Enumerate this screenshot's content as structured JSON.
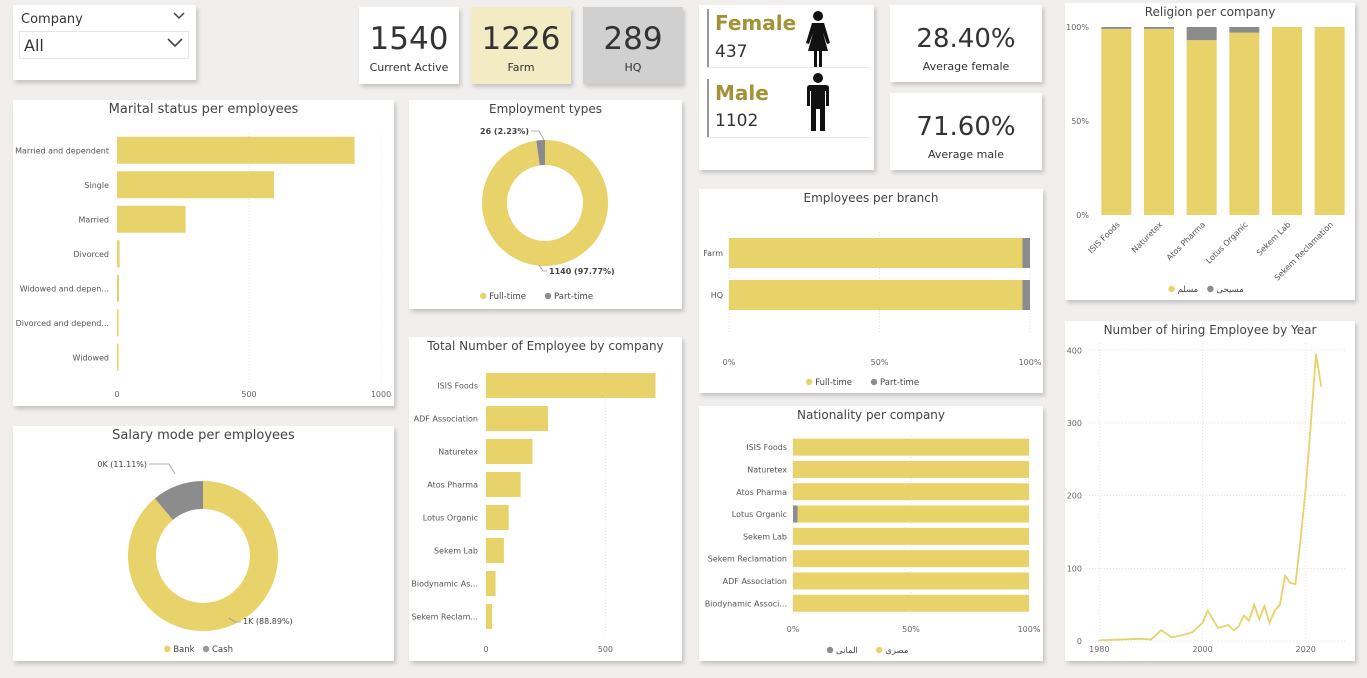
{
  "colors": {
    "yellow": "#e8d26a",
    "gray": "#8c8c8c",
    "gold_text": "#a39237"
  },
  "slicer": {
    "title": "Company",
    "value": "All"
  },
  "kpis": [
    {
      "value": "1540",
      "label": "Current Active"
    },
    {
      "value": "1226",
      "label": "Farm"
    },
    {
      "value": "289",
      "label": "HQ"
    }
  ],
  "gender": {
    "female_label": "Female",
    "female_count": "437",
    "male_label": "Male",
    "male_count": "1102"
  },
  "averages": {
    "female_pct": "28.40%",
    "female_label": "Average female",
    "male_pct": "71.60%",
    "male_label": "Average male"
  },
  "chart_data": [
    {
      "id": "marital",
      "type": "bar",
      "orientation": "horizontal",
      "title": "Marital status per employees",
      "categories": [
        "Married and dependent",
        "Single",
        "Married",
        "Divorced",
        "Widowed and depen...",
        "Divorced and depend...",
        "Widowed"
      ],
      "values": [
        900,
        595,
        260,
        10,
        8,
        5,
        3
      ],
      "xlim": [
        0,
        1000
      ],
      "xticks": [
        "0",
        "500",
        "1000"
      ],
      "grid": false
    },
    {
      "id": "employment",
      "type": "pie",
      "donut": true,
      "title": "Employment types",
      "labels": [
        "Full-time",
        "Part-time"
      ],
      "values": [
        1140,
        26
      ],
      "data_labels": [
        "1140 (97.77%)",
        "26 (2.23%)"
      ],
      "legend": "bottom"
    },
    {
      "id": "salary",
      "type": "pie",
      "donut": true,
      "title": "Salary mode per employees",
      "labels": [
        "Bank",
        "Cash"
      ],
      "values": [
        88.89,
        11.11
      ],
      "data_labels": [
        "1K (88.89%)",
        "0K (11.11%)"
      ],
      "legend": "bottom"
    },
    {
      "id": "company",
      "type": "bar",
      "orientation": "horizontal",
      "title": "Total Number of Employee by company",
      "categories": [
        "ISIS Foods",
        "ADF Association",
        "Naturetex",
        "Atos Pharma",
        "Lotus Organic",
        "Sekem Lab",
        "Biodynamic As...",
        "Sekem Reclam..."
      ],
      "values": [
        710,
        260,
        195,
        145,
        95,
        75,
        40,
        25
      ],
      "xlim": [
        0,
        800
      ],
      "xticks": [
        "0",
        "500"
      ]
    },
    {
      "id": "branch",
      "type": "bar",
      "orientation": "horizontal",
      "stacked": "100%",
      "title": "Employees per branch",
      "categories": [
        "Farm",
        "HQ"
      ],
      "series": [
        {
          "name": "Full-time",
          "values": [
            97.5,
            97.5
          ]
        },
        {
          "name": "Part-time",
          "values": [
            2.5,
            2.5
          ]
        }
      ],
      "xticks": [
        "0%",
        "50%",
        "100%"
      ],
      "legend": "bottom"
    },
    {
      "id": "nationality",
      "type": "bar",
      "orientation": "horizontal",
      "stacked": "100%",
      "title": "Nationality per company",
      "categories": [
        "ISIS Foods",
        "Naturetex",
        "Atos Pharma",
        "Lotus Organic",
        "Sekem Lab",
        "Sekem Reclamation",
        "ADF Association",
        "Biodynamic Associ..."
      ],
      "series": [
        {
          "name": "المانى",
          "values": [
            0,
            0,
            0,
            2,
            0,
            0,
            0,
            0
          ]
        },
        {
          "name": "مصرى",
          "values": [
            100,
            100,
            100,
            98,
            100,
            100,
            100,
            100
          ]
        }
      ],
      "xticks": [
        "0%",
        "50%",
        "100%"
      ],
      "legend": "bottom"
    },
    {
      "id": "religion",
      "type": "bar",
      "orientation": "vertical",
      "stacked": "100%",
      "title": "Religion per company",
      "categories": [
        "ISIS Foods",
        "Naturetex",
        "Atos Pharma",
        "Lotus Organic",
        "Sekem Lab",
        "Sekem Reclamation"
      ],
      "series": [
        {
          "name": "مسلم",
          "values": [
            99,
            99,
            93,
            97,
            100,
            100
          ]
        },
        {
          "name": "مسيحى",
          "values": [
            1,
            1,
            7,
            3,
            0,
            0
          ]
        }
      ],
      "yticks": [
        "0%",
        "50%",
        "100%"
      ],
      "legend": "bottom"
    },
    {
      "id": "hiring",
      "type": "line",
      "title": "Number of hiring Employee by Year",
      "x": [
        1980,
        1984,
        1988,
        1990,
        1992,
        1994,
        1996,
        1998,
        2000,
        2001,
        2003,
        2005,
        2006,
        2007,
        2008,
        2009,
        2010,
        2011,
        2012,
        2013,
        2014,
        2015,
        2016,
        2017,
        2018,
        2019,
        2020,
        2021,
        2022,
        2023
      ],
      "y": [
        1,
        2,
        3,
        2,
        15,
        5,
        8,
        12,
        25,
        42,
        18,
        22,
        15,
        20,
        35,
        28,
        50,
        30,
        48,
        25,
        42,
        50,
        90,
        80,
        78,
        140,
        210,
        300,
        395,
        350
      ],
      "xticks": [
        "1980",
        "2000",
        "2020"
      ],
      "yticks": [
        "0",
        "100",
        "200",
        "300",
        "400"
      ],
      "xlim": [
        1978,
        2028
      ],
      "ylim": [
        0,
        410
      ]
    }
  ]
}
